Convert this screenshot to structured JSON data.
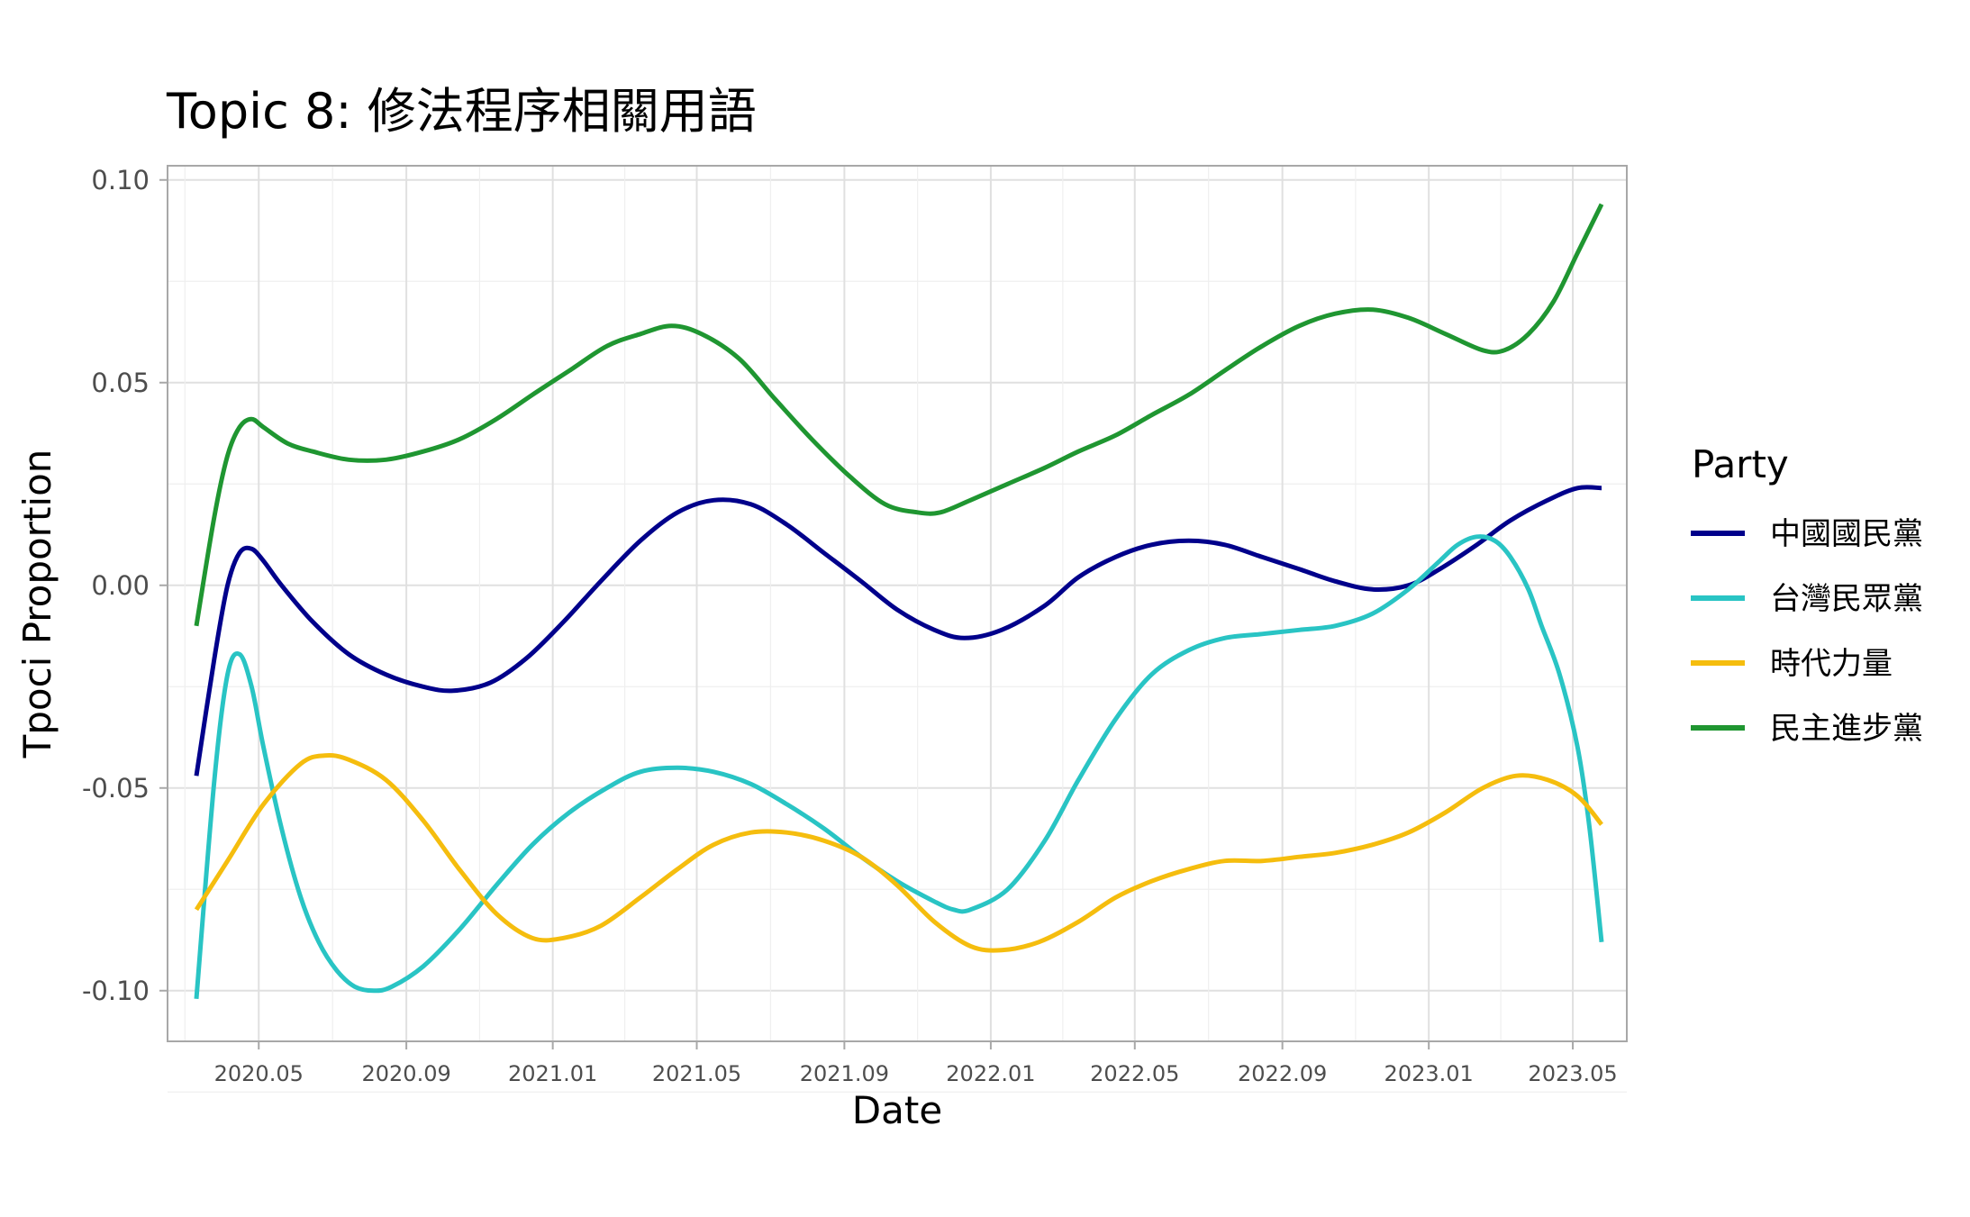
{
  "chart_data": {
    "type": "line",
    "title": "Topic 8: 修法程序相關用語",
    "xlabel": "Date",
    "ylabel": "Tpoci Proportion",
    "xlim": [
      "2020-02-15",
      "2023-06-15"
    ],
    "ylim": [
      -0.1125,
      0.1035
    ],
    "y_ticks": [
      -0.1,
      -0.05,
      0.0,
      0.05,
      0.1
    ],
    "y_tick_labels": [
      "-0.10",
      "-0.05",
      "0.00",
      "0.05",
      "0.10"
    ],
    "x_ticks": [
      "2020-05-01",
      "2020-09-01",
      "2021-01-01",
      "2021-05-01",
      "2021-09-01",
      "2022-01-01",
      "2022-05-01",
      "2022-09-01",
      "2023-01-01",
      "2023-05-01"
    ],
    "x_tick_labels": [
      "2020.05",
      "2020.09",
      "2021.01",
      "2021.05",
      "2021.09",
      "2022.01",
      "2022.05",
      "2022.09",
      "2023.01",
      "2023.05"
    ],
    "grid": true,
    "legend": {
      "title": "Party",
      "position": "right"
    },
    "series": [
      {
        "name": "中國國民黨",
        "color": "#00008b",
        "points": [
          [
            "2020-03-10",
            -0.047
          ],
          [
            "2020-03-25",
            -0.018
          ],
          [
            "2020-04-05",
            0.0
          ],
          [
            "2020-04-15",
            0.008
          ],
          [
            "2020-04-25",
            0.009
          ],
          [
            "2020-05-05",
            0.006
          ],
          [
            "2020-05-20",
            0.0
          ],
          [
            "2020-06-15",
            -0.009
          ],
          [
            "2020-07-15",
            -0.017
          ],
          [
            "2020-08-15",
            -0.022
          ],
          [
            "2020-09-15",
            -0.025
          ],
          [
            "2020-10-10",
            -0.026
          ],
          [
            "2020-11-10",
            -0.024
          ],
          [
            "2020-12-10",
            -0.018
          ],
          [
            "2021-01-10",
            -0.009
          ],
          [
            "2021-02-10",
            0.001
          ],
          [
            "2021-03-15",
            0.011
          ],
          [
            "2021-04-15",
            0.018
          ],
          [
            "2021-05-15",
            0.021
          ],
          [
            "2021-06-15",
            0.02
          ],
          [
            "2021-07-15",
            0.015
          ],
          [
            "2021-08-15",
            0.008
          ],
          [
            "2021-09-15",
            0.001
          ],
          [
            "2021-10-15",
            -0.006
          ],
          [
            "2021-11-15",
            -0.011
          ],
          [
            "2021-12-10",
            -0.013
          ],
          [
            "2022-01-10",
            -0.011
          ],
          [
            "2022-02-15",
            -0.005
          ],
          [
            "2022-03-15",
            0.002
          ],
          [
            "2022-04-15",
            0.007
          ],
          [
            "2022-05-15",
            0.01
          ],
          [
            "2022-06-15",
            0.011
          ],
          [
            "2022-07-15",
            0.01
          ],
          [
            "2022-08-15",
            0.007
          ],
          [
            "2022-09-15",
            0.004
          ],
          [
            "2022-10-15",
            0.001
          ],
          [
            "2022-11-15",
            -0.001
          ],
          [
            "2022-12-15",
            0.0
          ],
          [
            "2023-01-10",
            0.004
          ],
          [
            "2023-02-10",
            0.01
          ],
          [
            "2023-03-10",
            0.016
          ],
          [
            "2023-04-10",
            0.021
          ],
          [
            "2023-05-05",
            0.024
          ],
          [
            "2023-05-25",
            0.024
          ]
        ]
      },
      {
        "name": "台灣民眾黨",
        "color": "#29c4c4",
        "points": [
          [
            "2020-03-10",
            -0.102
          ],
          [
            "2020-03-25",
            -0.048
          ],
          [
            "2020-04-05",
            -0.022
          ],
          [
            "2020-04-15",
            -0.017
          ],
          [
            "2020-04-25",
            -0.025
          ],
          [
            "2020-05-05",
            -0.04
          ],
          [
            "2020-05-20",
            -0.06
          ],
          [
            "2020-06-05",
            -0.077
          ],
          [
            "2020-06-20",
            -0.088
          ],
          [
            "2020-07-05",
            -0.095
          ],
          [
            "2020-07-20",
            -0.099
          ],
          [
            "2020-08-05",
            -0.1
          ],
          [
            "2020-08-20",
            -0.099
          ],
          [
            "2020-09-15",
            -0.094
          ],
          [
            "2020-10-15",
            -0.085
          ],
          [
            "2020-11-15",
            -0.074
          ],
          [
            "2020-12-15",
            -0.064
          ],
          [
            "2021-01-15",
            -0.056
          ],
          [
            "2021-02-15",
            -0.05
          ],
          [
            "2021-03-15",
            -0.046
          ],
          [
            "2021-04-15",
            -0.045
          ],
          [
            "2021-05-15",
            -0.046
          ],
          [
            "2021-06-15",
            -0.049
          ],
          [
            "2021-07-15",
            -0.054
          ],
          [
            "2021-08-15",
            -0.06
          ],
          [
            "2021-09-15",
            -0.067
          ],
          [
            "2021-10-15",
            -0.073
          ],
          [
            "2021-11-15",
            -0.078
          ],
          [
            "2021-12-01",
            -0.08
          ],
          [
            "2021-12-15",
            -0.08
          ],
          [
            "2022-01-15",
            -0.075
          ],
          [
            "2022-02-15",
            -0.063
          ],
          [
            "2022-03-15",
            -0.048
          ],
          [
            "2022-04-15",
            -0.033
          ],
          [
            "2022-05-15",
            -0.022
          ],
          [
            "2022-06-15",
            -0.016
          ],
          [
            "2022-07-15",
            -0.013
          ],
          [
            "2022-08-15",
            -0.012
          ],
          [
            "2022-09-15",
            -0.011
          ],
          [
            "2022-10-15",
            -0.01
          ],
          [
            "2022-11-15",
            -0.007
          ],
          [
            "2022-12-15",
            -0.001
          ],
          [
            "2023-01-10",
            0.006
          ],
          [
            "2023-01-25",
            0.01
          ],
          [
            "2023-02-10",
            0.012
          ],
          [
            "2023-02-25",
            0.011
          ],
          [
            "2023-03-10",
            0.007
          ],
          [
            "2023-03-25",
            -0.001
          ],
          [
            "2023-04-05",
            -0.01
          ],
          [
            "2023-04-20",
            -0.022
          ],
          [
            "2023-05-05",
            -0.04
          ],
          [
            "2023-05-15",
            -0.06
          ],
          [
            "2023-05-25",
            -0.088
          ]
        ]
      },
      {
        "name": "時代力量",
        "color": "#f5bd0e",
        "points": [
          [
            "2020-03-10",
            -0.08
          ],
          [
            "2020-04-05",
            -0.068
          ],
          [
            "2020-05-05",
            -0.054
          ],
          [
            "2020-06-05",
            -0.044
          ],
          [
            "2020-06-25",
            -0.042
          ],
          [
            "2020-07-15",
            -0.043
          ],
          [
            "2020-08-15",
            -0.048
          ],
          [
            "2020-09-15",
            -0.058
          ],
          [
            "2020-10-15",
            -0.07
          ],
          [
            "2020-11-15",
            -0.081
          ],
          [
            "2020-12-15",
            -0.087
          ],
          [
            "2021-01-10",
            -0.087
          ],
          [
            "2021-02-10",
            -0.084
          ],
          [
            "2021-03-15",
            -0.077
          ],
          [
            "2021-04-15",
            -0.07
          ],
          [
            "2021-05-15",
            -0.064
          ],
          [
            "2021-06-15",
            -0.061
          ],
          [
            "2021-07-15",
            -0.061
          ],
          [
            "2021-08-15",
            -0.063
          ],
          [
            "2021-09-15",
            -0.067
          ],
          [
            "2021-10-15",
            -0.074
          ],
          [
            "2021-11-15",
            -0.083
          ],
          [
            "2021-12-15",
            -0.089
          ],
          [
            "2022-01-10",
            -0.09
          ],
          [
            "2022-02-10",
            -0.088
          ],
          [
            "2022-03-15",
            -0.083
          ],
          [
            "2022-04-15",
            -0.077
          ],
          [
            "2022-05-15",
            -0.073
          ],
          [
            "2022-06-15",
            -0.07
          ],
          [
            "2022-07-15",
            -0.068
          ],
          [
            "2022-08-15",
            -0.068
          ],
          [
            "2022-09-15",
            -0.067
          ],
          [
            "2022-10-15",
            -0.066
          ],
          [
            "2022-11-15",
            -0.064
          ],
          [
            "2022-12-15",
            -0.061
          ],
          [
            "2023-01-15",
            -0.056
          ],
          [
            "2023-02-15",
            -0.05
          ],
          [
            "2023-03-15",
            -0.047
          ],
          [
            "2023-04-10",
            -0.048
          ],
          [
            "2023-05-05",
            -0.052
          ],
          [
            "2023-05-25",
            -0.059
          ]
        ]
      },
      {
        "name": "民主進步黨",
        "color": "#1f9631",
        "points": [
          [
            "2020-03-10",
            -0.01
          ],
          [
            "2020-03-25",
            0.017
          ],
          [
            "2020-04-05",
            0.032
          ],
          [
            "2020-04-15",
            0.039
          ],
          [
            "2020-04-25",
            0.041
          ],
          [
            "2020-05-05",
            0.039
          ],
          [
            "2020-05-25",
            0.035
          ],
          [
            "2020-06-15",
            0.033
          ],
          [
            "2020-07-15",
            0.031
          ],
          [
            "2020-08-15",
            0.031
          ],
          [
            "2020-09-15",
            0.033
          ],
          [
            "2020-10-15",
            0.036
          ],
          [
            "2020-11-15",
            0.041
          ],
          [
            "2020-12-15",
            0.047
          ],
          [
            "2021-01-15",
            0.053
          ],
          [
            "2021-02-15",
            0.059
          ],
          [
            "2021-03-15",
            0.062
          ],
          [
            "2021-04-10",
            0.064
          ],
          [
            "2021-05-05",
            0.062
          ],
          [
            "2021-06-05",
            0.056
          ],
          [
            "2021-07-05",
            0.046
          ],
          [
            "2021-08-05",
            0.036
          ],
          [
            "2021-09-05",
            0.027
          ],
          [
            "2021-10-05",
            0.02
          ],
          [
            "2021-11-01",
            0.018
          ],
          [
            "2021-11-20",
            0.018
          ],
          [
            "2021-12-15",
            0.021
          ],
          [
            "2022-01-15",
            0.025
          ],
          [
            "2022-02-15",
            0.029
          ],
          [
            "2022-03-15",
            0.033
          ],
          [
            "2022-04-15",
            0.037
          ],
          [
            "2022-05-15",
            0.042
          ],
          [
            "2022-06-15",
            0.047
          ],
          [
            "2022-07-15",
            0.053
          ],
          [
            "2022-08-15",
            0.059
          ],
          [
            "2022-09-15",
            0.064
          ],
          [
            "2022-10-15",
            0.067
          ],
          [
            "2022-11-15",
            0.068
          ],
          [
            "2022-12-15",
            0.066
          ],
          [
            "2023-01-15",
            0.062
          ],
          [
            "2023-02-15",
            0.058
          ],
          [
            "2023-03-05",
            0.058
          ],
          [
            "2023-03-25",
            0.062
          ],
          [
            "2023-04-15",
            0.07
          ],
          [
            "2023-05-05",
            0.082
          ],
          [
            "2023-05-25",
            0.094
          ]
        ]
      }
    ]
  }
}
